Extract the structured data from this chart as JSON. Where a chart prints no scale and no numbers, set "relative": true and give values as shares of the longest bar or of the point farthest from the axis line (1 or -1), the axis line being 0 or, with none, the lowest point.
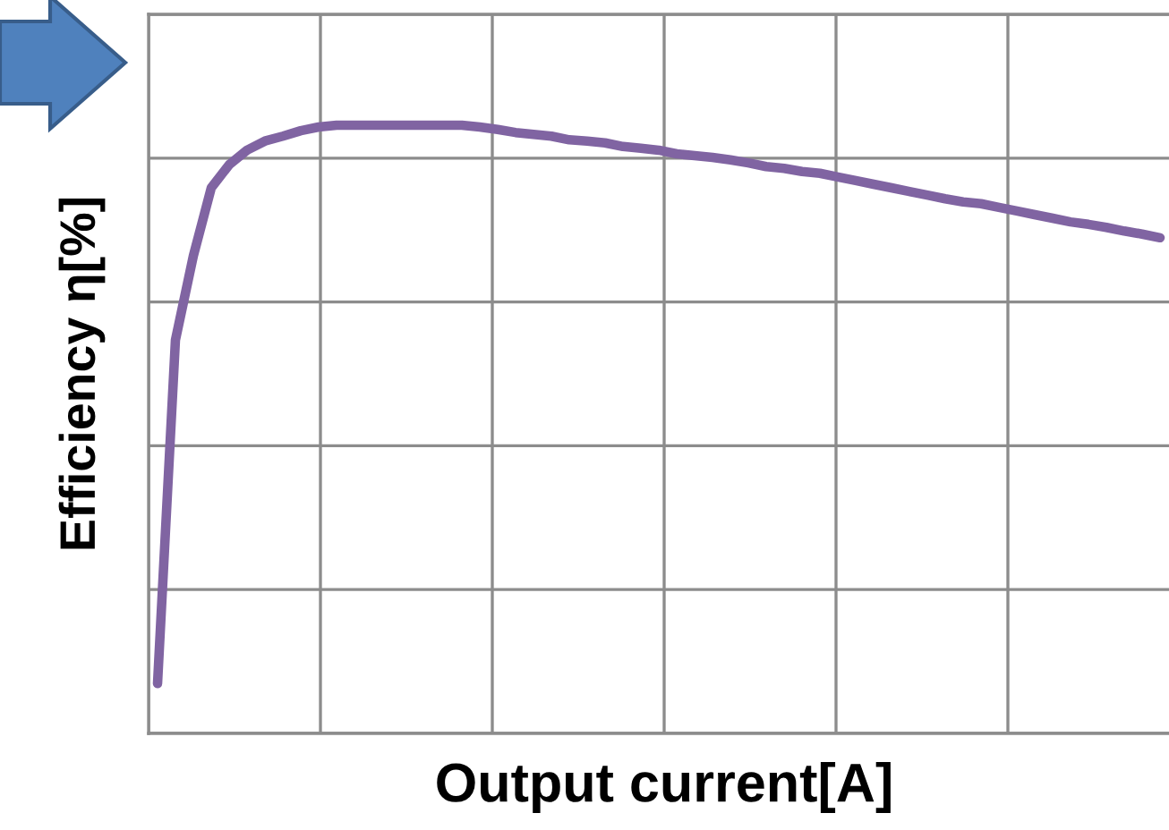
{
  "chart_data": {
    "type": "line",
    "relative": true,
    "xlabel": "Output current[A]",
    "ylabel": "Efficiency η[%]",
    "grid": true,
    "categories": [
      null,
      null,
      null,
      null,
      null,
      null,
      null,
      null,
      null,
      null,
      null,
      null,
      null,
      null,
      null,
      null,
      null,
      null,
      null,
      null,
      null,
      null,
      null,
      null,
      null,
      null,
      null,
      null,
      null,
      null,
      null,
      null,
      null,
      null,
      null,
      null,
      null,
      null,
      null,
      null,
      null,
      null,
      null,
      null,
      null,
      null,
      null,
      null,
      null,
      null,
      null,
      null,
      null,
      null,
      null,
      null,
      null
    ],
    "series": [
      {
        "color": "#8064a2",
        "values": [
          0.082,
          0.647,
          0.785,
          0.897,
          0.935,
          0.959,
          0.974,
          0.982,
          0.991,
          0.997,
          1.0,
          1.0,
          1.0,
          1.0,
          1.0,
          1.0,
          1.0,
          1.0,
          0.997,
          0.993,
          0.988,
          0.985,
          0.982,
          0.976,
          0.974,
          0.971,
          0.965,
          0.962,
          0.959,
          0.953,
          0.95,
          0.947,
          0.943,
          0.938,
          0.932,
          0.929,
          0.924,
          0.921,
          0.915,
          0.909,
          0.903,
          0.897,
          0.891,
          0.885,
          0.879,
          0.874,
          0.871,
          0.865,
          0.859,
          0.853,
          0.847,
          0.841,
          0.837,
          0.832,
          0.826,
          0.821,
          0.815
        ]
      }
    ]
  }
}
